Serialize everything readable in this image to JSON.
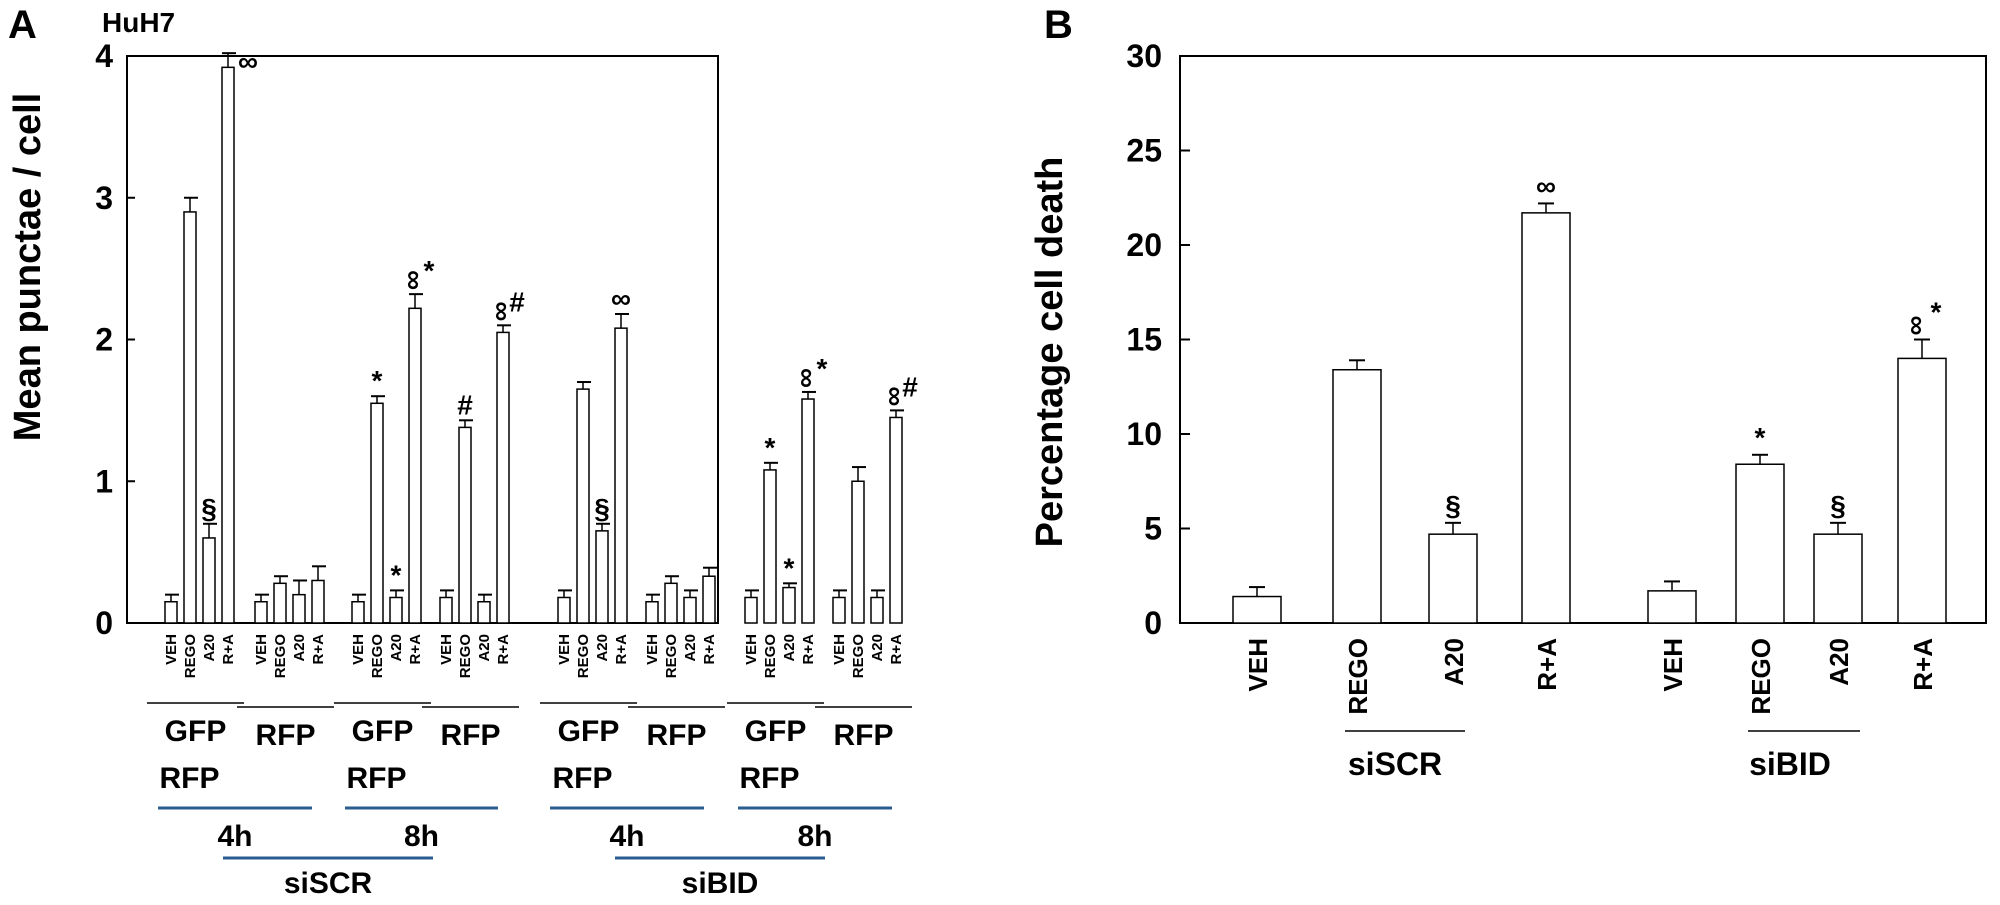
{
  "chart_data": [
    {
      "type": "bar",
      "panel": "A",
      "cell_line": "HuH7",
      "ylabel": "Mean punctae / cell",
      "ylim": [
        0,
        4
      ],
      "yticks": [
        "0",
        "1",
        "2",
        "3",
        "4"
      ],
      "bar_labels": [
        "VEH",
        "REGO",
        "A20",
        "R+A"
      ],
      "groups": [
        {
          "marker": [
            "GFP",
            "RFP"
          ],
          "values": [
            0.15,
            2.9,
            0.6,
            3.92
          ],
          "errors": [
            0.05,
            0.1,
            0.1,
            0.1
          ],
          "annotations": [
            "",
            "",
            "§",
            "∞"
          ]
        },
        {
          "marker": [
            "RFP"
          ],
          "values": [
            0.15,
            0.28,
            0.2,
            0.3
          ],
          "errors": [
            0.05,
            0.05,
            0.1,
            0.1
          ],
          "annotations": [
            "",
            "",
            "",
            ""
          ]
        },
        {
          "marker": [
            "GFP",
            "RFP"
          ],
          "values": [
            0.15,
            1.55,
            0.18,
            2.22
          ],
          "errors": [
            0.05,
            0.05,
            0.05,
            0.1
          ],
          "annotations": [
            "",
            "*",
            "*",
            "∞*"
          ]
        },
        {
          "marker": [
            "RFP"
          ],
          "values": [
            0.18,
            1.38,
            0.15,
            2.05
          ],
          "errors": [
            0.05,
            0.05,
            0.05,
            0.05
          ],
          "annotations": [
            "",
            "#",
            "",
            "∞#"
          ]
        },
        {
          "marker": [
            "GFP",
            "RFP"
          ],
          "values": [
            0.18,
            1.65,
            0.65,
            2.08
          ],
          "errors": [
            0.05,
            0.05,
            0.05,
            0.1
          ],
          "annotations": [
            "",
            "",
            "§",
            "∞"
          ]
        },
        {
          "marker": [
            "RFP"
          ],
          "values": [
            0.15,
            0.28,
            0.18,
            0.33
          ],
          "errors": [
            0.05,
            0.05,
            0.05,
            0.06
          ],
          "annotations": [
            "",
            "",
            "",
            ""
          ]
        },
        {
          "marker": [
            "GFP",
            "RFP"
          ],
          "values": [
            0.18,
            1.08,
            0.25,
            1.58
          ],
          "errors": [
            0.05,
            0.05,
            0.03,
            0.05
          ],
          "annotations": [
            "",
            "*",
            "*",
            "∞*"
          ]
        },
        {
          "marker": [
            "RFP"
          ],
          "values": [
            0.18,
            1.0,
            0.18,
            1.45
          ],
          "errors": [
            0.05,
            0.1,
            0.05,
            0.05
          ],
          "annotations": [
            "",
            "",
            "",
            "∞#"
          ]
        }
      ],
      "time_labels": [
        "4h",
        "8h",
        "4h",
        "8h"
      ],
      "sirna_labels": [
        "siSCR",
        "siBID"
      ]
    },
    {
      "type": "bar",
      "panel": "B",
      "ylabel": "Percentage cell death",
      "ylim": [
        0,
        30
      ],
      "yticks": [
        "0",
        "5",
        "10",
        "15",
        "20",
        "25",
        "30"
      ],
      "bar_labels": [
        "VEH",
        "REGO",
        "A20",
        "R+A"
      ],
      "groups": [
        {
          "name": "siSCR",
          "values": [
            1.4,
            13.4,
            4.7,
            21.7
          ],
          "errors": [
            0.5,
            0.5,
            0.6,
            0.5
          ],
          "annotations": [
            "",
            "",
            "§",
            "∞"
          ]
        },
        {
          "name": "siBID",
          "values": [
            1.7,
            8.4,
            4.7,
            14.0
          ],
          "errors": [
            0.5,
            0.5,
            0.6,
            1.0
          ],
          "annotations": [
            "",
            "*",
            "§",
            "∞*"
          ]
        }
      ]
    }
  ]
}
